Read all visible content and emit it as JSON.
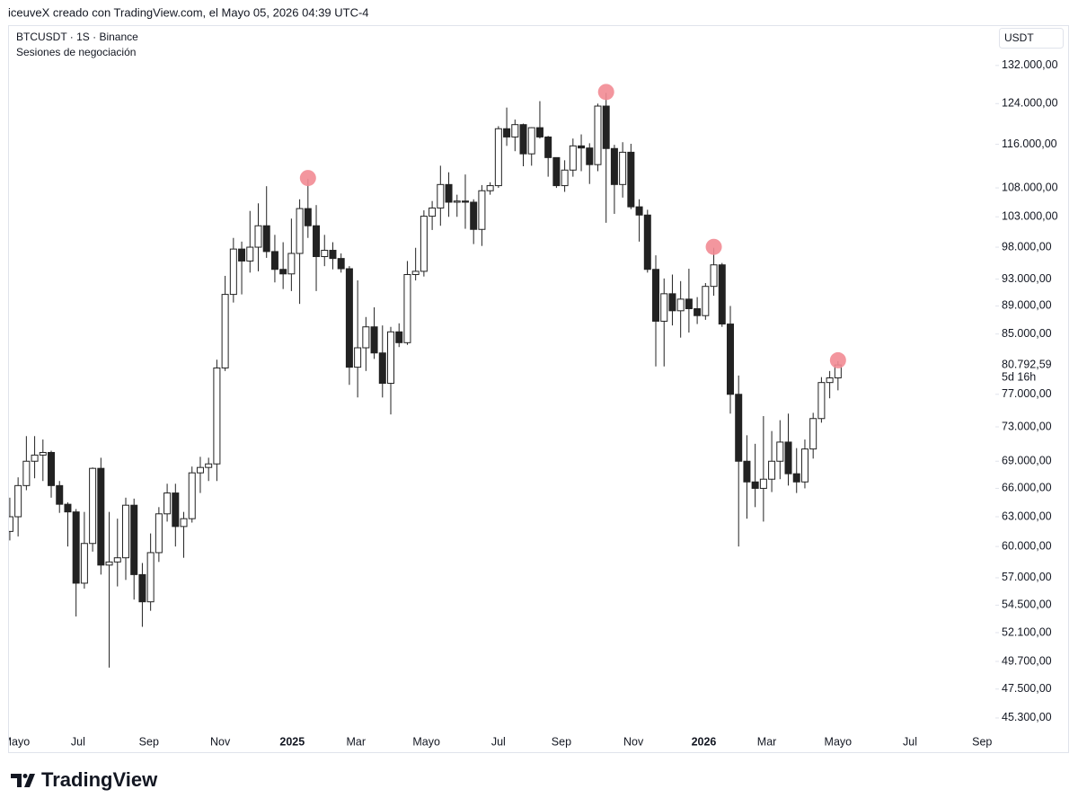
{
  "header": {
    "attribution": "iceuveX creado con TradingView.com, el Mayo 05, 2026 04:39 UTC-4"
  },
  "chart_data": {
    "type": "candlestick",
    "title": "BTCUSDT · 1S · Binance",
    "subtitle": "Sesiones de negociación",
    "currency": "USDT",
    "log_scale": true,
    "grid": false,
    "up_color": "#ffffff",
    "down_color": "#222222",
    "marker_color": "#f28b93",
    "open": [
      61500,
      63000,
      66300,
      69000,
      69700,
      70000,
      66300,
      64300,
      63500,
      56500,
      60300,
      68200,
      58200,
      58500,
      58900,
      64200,
      57300,
      54800,
      59400,
      63300,
      65500,
      62000,
      62800,
      67700,
      68300,
      68700,
      80400,
      90700,
      97700,
      95800,
      98000,
      101500,
      97300,
      94500,
      93800,
      97000,
      104400,
      101500,
      96500,
      97500,
      96200,
      94600,
      80500,
      83100,
      86000,
      82400,
      78400,
      85300,
      83800,
      93700,
      94200,
      103100,
      104500,
      108600,
      105500,
      105700,
      105500,
      100900,
      107500,
      108400,
      119000,
      117400,
      119800,
      114200,
      119200,
      117400,
      113500,
      108400,
      111200,
      115700,
      115300,
      112200,
      123500,
      115200,
      108600,
      114500,
      104700,
      103300,
      94500,
      86800,
      90800,
      88300,
      90000,
      88600,
      87600,
      91900,
      95200,
      86400,
      77000,
      69000,
      66700,
      66000,
      67000,
      69000,
      71200,
      67600,
      66700,
      70400,
      74000,
      78500,
      79100
    ],
    "high": [
      65000,
      67200,
      71900,
      71900,
      71500,
      70200,
      66800,
      64500,
      63800,
      63500,
      68300,
      69400,
      63500,
      62800,
      65000,
      64900,
      58400,
      61300,
      64000,
      66500,
      66500,
      63500,
      68400,
      69500,
      69400,
      81500,
      93500,
      99500,
      98900,
      104000,
      105300,
      108300,
      100000,
      98800,
      102700,
      106000,
      109600,
      105000,
      100000,
      98800,
      97000,
      95000,
      92800,
      87400,
      88800,
      86200,
      86000,
      86500,
      95800,
      97900,
      104100,
      105700,
      112000,
      110800,
      106800,
      110400,
      106000,
      108500,
      109000,
      119500,
      123200,
      120800,
      120000,
      119300,
      124500,
      117600,
      113500,
      113000,
      117100,
      117900,
      116200,
      124000,
      126200,
      115900,
      116400,
      116100,
      106000,
      104200,
      96700,
      93100,
      93700,
      92700,
      94600,
      90300,
      92400,
      97900,
      95500,
      89000,
      79400,
      72000,
      71000,
      74300,
      72500,
      73800,
      74600,
      70500,
      71500,
      74700,
      79200,
      80000,
      81300
    ],
    "low": [
      60600,
      61000,
      65800,
      67100,
      66800,
      65000,
      63400,
      60000,
      53500,
      56000,
      59500,
      57300,
      49200,
      56200,
      56800,
      55000,
      52600,
      54000,
      58500,
      62500,
      60000,
      58900,
      62400,
      65500,
      66800,
      66800,
      80000,
      89500,
      90700,
      94000,
      94200,
      96300,
      92500,
      91500,
      91200,
      89300,
      99500,
      91200,
      95000,
      94500,
      94000,
      78200,
      76600,
      80000,
      81600,
      76600,
      74500,
      83200,
      83500,
      92800,
      93400,
      100800,
      101500,
      103000,
      103000,
      101000,
      98500,
      98200,
      106800,
      108000,
      115700,
      114700,
      111900,
      112000,
      117100,
      110000,
      108000,
      107300,
      110000,
      111000,
      108700,
      111000,
      102000,
      103500,
      106300,
      104300,
      98900,
      94000,
      80600,
      80600,
      86200,
      84500,
      85200,
      86400,
      87000,
      90500,
      86000,
      74600,
      60000,
      62800,
      64000,
      62500,
      65600,
      67000,
      66300,
      65500,
      66000,
      69300,
      73500,
      76500,
      77500
    ],
    "close": [
      63000,
      66300,
      69000,
      69700,
      70000,
      66300,
      64300,
      63500,
      56500,
      60300,
      68200,
      58200,
      58500,
      58900,
      64200,
      57300,
      54800,
      59400,
      63300,
      65500,
      62000,
      62800,
      67700,
      68300,
      68700,
      80400,
      90700,
      97700,
      95800,
      98000,
      101500,
      97300,
      94500,
      93800,
      97000,
      104400,
      101500,
      96500,
      97500,
      96200,
      94600,
      80500,
      83100,
      86000,
      82400,
      78400,
      85300,
      83800,
      93700,
      94200,
      103100,
      104500,
      108600,
      105500,
      105700,
      105500,
      100900,
      107500,
      108400,
      119000,
      117400,
      119800,
      114200,
      119200,
      117400,
      113500,
      108400,
      111200,
      115700,
      115300,
      112200,
      123500,
      115200,
      108600,
      114500,
      104700,
      103300,
      94500,
      86800,
      90800,
      88300,
      90000,
      88600,
      87600,
      91900,
      95200,
      86400,
      77000,
      69000,
      66700,
      66000,
      67000,
      69000,
      71200,
      67600,
      66700,
      70400,
      74000,
      78500,
      79100,
      80792.59
    ],
    "markers": [
      {
        "index": 36,
        "value": 109600
      },
      {
        "index": 72,
        "value": 126200
      },
      {
        "index": 85,
        "value": 97900
      },
      {
        "index": 100,
        "value": 81300
      }
    ],
    "last_price": {
      "value": 80792.59,
      "label": "80.792,59"
    },
    "countdown": "5d 16h",
    "xlim": [
      -0.1,
      119
    ],
    "xticks": [
      {
        "value": 0.76,
        "label": "Mayo"
      },
      {
        "value": 8.24,
        "label": "Jul"
      },
      {
        "value": 16.8,
        "label": "Sep"
      },
      {
        "value": 25.4,
        "label": "Nov"
      },
      {
        "value": 34.1,
        "label": "2025"
      },
      {
        "value": 41.8,
        "label": "Mar"
      },
      {
        "value": 50.3,
        "label": "Mayo"
      },
      {
        "value": 59.0,
        "label": "Jul"
      },
      {
        "value": 66.6,
        "label": "Sep"
      },
      {
        "value": 75.3,
        "label": "Nov"
      },
      {
        "value": 83.8,
        "label": "2026"
      },
      {
        "value": 91.4,
        "label": "Mar"
      },
      {
        "value": 100.0,
        "label": "Mayo"
      },
      {
        "value": 108.7,
        "label": "Jul"
      },
      {
        "value": 117.4,
        "label": "Sep"
      }
    ],
    "ylim": [
      44240,
      140600
    ],
    "yticks": [
      {
        "value": 132000,
        "label": "132.000,00"
      },
      {
        "value": 124000,
        "label": "124.000,00"
      },
      {
        "value": 116000,
        "label": "116.000,00"
      },
      {
        "value": 108000,
        "label": "108.000,00"
      },
      {
        "value": 103000,
        "label": "103.000,00"
      },
      {
        "value": 98000,
        "label": "98.000,00"
      },
      {
        "value": 93000,
        "label": "93.000,00"
      },
      {
        "value": 89000,
        "label": "89.000,00"
      },
      {
        "value": 85000,
        "label": "85.000,00"
      },
      {
        "value": 77000,
        "label": "77.000,00"
      },
      {
        "value": 73000,
        "label": "73.000,00"
      },
      {
        "value": 69000,
        "label": "69.000,00"
      },
      {
        "value": 66000,
        "label": "66.000,00"
      },
      {
        "value": 63000,
        "label": "63.000,00"
      },
      {
        "value": 60000,
        "label": "60.000,00"
      },
      {
        "value": 57000,
        "label": "57.000,00"
      },
      {
        "value": 54500,
        "label": "54.500,00"
      },
      {
        "value": 52100,
        "label": "52.100,00"
      },
      {
        "value": 49700,
        "label": "49.700,00"
      },
      {
        "value": 47500,
        "label": "47.500,00"
      },
      {
        "value": 45300,
        "label": "45.300,00"
      }
    ]
  },
  "footer": {
    "logo": "TradingView"
  }
}
